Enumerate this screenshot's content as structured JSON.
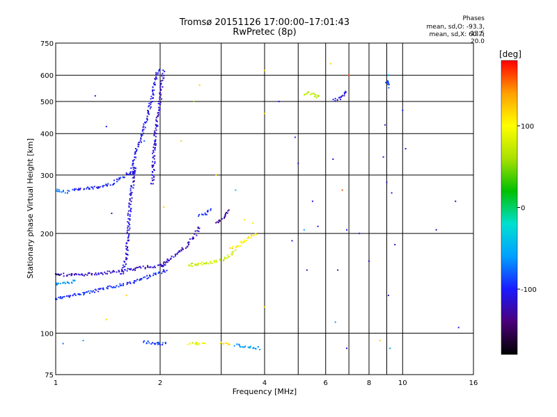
{
  "chart_data": {
    "type": "scatter",
    "title": "Tromsø 20151126 17:00:00–17:01:43",
    "subtitle": "RwPretec (8p)",
    "xlabel": "Frequency [MHz]",
    "ylabel": "Stationary phase Virtual Height [km]",
    "x_scale": "log",
    "y_scale": "log",
    "xlim": [
      1,
      16
    ],
    "ylim": [
      75,
      750
    ],
    "x_ticks": [
      1,
      2,
      4,
      6,
      8,
      10,
      16
    ],
    "x_minor_ticks": [
      3,
      5,
      7,
      9
    ],
    "y_ticks": [
      75,
      100,
      200,
      300,
      400,
      500,
      600,
      750
    ],
    "y_minor_ticks": [
      150
    ],
    "grid": true,
    "stats": {
      "title": "Phases",
      "o_line": "mean, sd,O: -93.3, 13.5",
      "x_line": "mean, sd,X:  60.7, 20.0"
    },
    "colorbar": {
      "label": "[deg]",
      "range": [
        -180,
        180
      ],
      "ticks": [
        100,
        0,
        -100
      ],
      "colormap": [
        "#000000",
        "#4b007a",
        "#1a1aff",
        "#00a0ff",
        "#00e0d0",
        "#00c000",
        "#aae000",
        "#ffff00",
        "#ffa000",
        "#ff0000"
      ]
    },
    "traces": [
      {
        "points": [
          [
            1.0,
            127
          ],
          [
            1.12,
            130
          ],
          [
            1.3,
            134
          ],
          [
            1.5,
            139
          ],
          [
            1.7,
            143
          ],
          [
            1.9,
            150
          ],
          [
            2.1,
            155
          ]
        ],
        "phase": -95
      },
      {
        "points": [
          [
            1.0,
            150
          ],
          [
            1.2,
            150
          ],
          [
            1.4,
            152
          ],
          [
            1.6,
            155
          ],
          [
            1.8,
            158
          ],
          [
            2.0,
            160
          ],
          [
            2.1,
            160
          ]
        ],
        "phase": -115
      },
      {
        "points": [
          [
            1.0,
            140
          ],
          [
            1.08,
            142
          ],
          [
            1.15,
            144
          ]
        ],
        "phase": -60
      },
      {
        "points": [
          [
            1.0,
            270
          ],
          [
            1.05,
            268
          ],
          [
            1.1,
            266
          ]
        ],
        "phase": -75
      },
      {
        "points": [
          [
            1.12,
            270
          ],
          [
            1.3,
            275
          ],
          [
            1.45,
            282
          ],
          [
            1.6,
            300
          ],
          [
            1.7,
            310
          ]
        ],
        "phase": -100
      },
      {
        "points": [
          [
            1.55,
            150
          ],
          [
            1.6,
            170
          ],
          [
            1.62,
            200
          ],
          [
            1.63,
            230
          ],
          [
            1.65,
            260
          ],
          [
            1.67,
            290
          ],
          [
            1.7,
            320
          ]
        ],
        "phase": -110
      },
      {
        "points": [
          [
            1.65,
            300
          ],
          [
            1.7,
            350
          ],
          [
            1.78,
            400
          ],
          [
            1.85,
            460
          ],
          [
            1.9,
            520
          ],
          [
            1.95,
            600
          ],
          [
            2.0,
            630
          ]
        ],
        "phase": -105
      },
      {
        "points": [
          [
            1.9,
            280
          ],
          [
            1.92,
            350
          ],
          [
            1.95,
            420
          ],
          [
            2.0,
            500
          ],
          [
            2.02,
            560
          ],
          [
            2.05,
            620
          ]
        ],
        "phase": -115
      },
      {
        "points": [
          [
            2.0,
            160
          ],
          [
            2.1,
            165
          ],
          [
            2.25,
            175
          ],
          [
            2.4,
            185
          ],
          [
            2.5,
            195
          ],
          [
            2.6,
            210
          ]
        ],
        "phase": -120
      },
      {
        "points": [
          [
            2.4,
            160
          ],
          [
            2.6,
            162
          ],
          [
            2.8,
            164
          ],
          [
            3.0,
            166
          ],
          [
            3.2,
            172
          ],
          [
            3.3,
            178
          ]
        ],
        "phase": 75
      },
      {
        "points": [
          [
            2.9,
            215
          ],
          [
            3.0,
            220
          ],
          [
            3.1,
            228
          ],
          [
            3.15,
            238
          ]
        ],
        "phase": -130
      },
      {
        "points": [
          [
            2.6,
            225
          ],
          [
            2.7,
            230
          ],
          [
            2.8,
            238
          ]
        ],
        "phase": -90
      },
      {
        "points": [
          [
            3.2,
            180
          ],
          [
            3.4,
            185
          ],
          [
            3.6,
            195
          ],
          [
            3.8,
            200
          ]
        ],
        "phase": 110
      },
      {
        "points": [
          [
            1.8,
            94
          ],
          [
            2.0,
            93
          ],
          [
            2.1,
            93
          ]
        ],
        "phase": -90
      },
      {
        "points": [
          [
            2.4,
            93
          ],
          [
            2.6,
            93
          ],
          [
            2.7,
            93
          ]
        ],
        "phase": 90
      },
      {
        "points": [
          [
            3.0,
            93
          ],
          [
            3.2,
            93
          ]
        ],
        "phase": 110
      },
      {
        "points": [
          [
            3.3,
            92
          ],
          [
            3.6,
            91
          ],
          [
            3.9,
            90
          ]
        ],
        "phase": -60
      },
      {
        "points": [
          [
            5.2,
            525
          ],
          [
            5.4,
            530
          ],
          [
            5.6,
            520
          ],
          [
            5.8,
            515
          ]
        ],
        "phase": 70
      },
      {
        "points": [
          [
            6.3,
            505
          ],
          [
            6.6,
            510
          ],
          [
            6.9,
            540
          ]
        ],
        "phase": -110
      },
      {
        "points": [
          [
            9.0,
            570
          ],
          [
            9.1,
            575
          ],
          [
            9.1,
            550
          ]
        ],
        "phase": -90
      }
    ],
    "points": [
      [
        1.05,
        93,
        -75
      ],
      [
        1.2,
        95,
        -60
      ],
      [
        1.4,
        110,
        120
      ],
      [
        1.6,
        130,
        120
      ],
      [
        1.3,
        520,
        -110
      ],
      [
        1.4,
        420,
        -100
      ],
      [
        1.45,
        230,
        -120
      ],
      [
        1.8,
        380,
        -80
      ],
      [
        2.05,
        240,
        120
      ],
      [
        2.3,
        380,
        120
      ],
      [
        2.5,
        500,
        50
      ],
      [
        2.6,
        560,
        120
      ],
      [
        2.9,
        300,
        110
      ],
      [
        3.3,
        270,
        -40
      ],
      [
        3.5,
        220,
        110
      ],
      [
        3.7,
        215,
        110
      ],
      [
        4.0,
        460,
        120
      ],
      [
        4.0,
        120,
        120
      ],
      [
        4.0,
        620,
        120
      ],
      [
        4.4,
        500,
        -110
      ],
      [
        4.8,
        190,
        -110
      ],
      [
        4.9,
        390,
        -100
      ],
      [
        5.0,
        325,
        -110
      ],
      [
        5.2,
        205,
        -60
      ],
      [
        5.3,
        155,
        -110
      ],
      [
        5.5,
        250,
        -110
      ],
      [
        5.7,
        210,
        -110
      ],
      [
        6.2,
        650,
        120
      ],
      [
        6.3,
        335,
        -110
      ],
      [
        6.4,
        108,
        -60
      ],
      [
        6.5,
        155,
        -120
      ],
      [
        6.7,
        270,
        160
      ],
      [
        6.9,
        205,
        -100
      ],
      [
        6.9,
        90,
        -110
      ],
      [
        7.0,
        600,
        160
      ],
      [
        7.5,
        200,
        -100
      ],
      [
        8.0,
        165,
        -110
      ],
      [
        8.6,
        95,
        120
      ],
      [
        8.8,
        340,
        -100
      ],
      [
        8.9,
        425,
        -120
      ],
      [
        9.0,
        285,
        -110
      ],
      [
        9.1,
        600,
        -60
      ],
      [
        9.1,
        130,
        -120
      ],
      [
        9.2,
        90,
        -60
      ],
      [
        9.3,
        265,
        -110
      ],
      [
        9.5,
        185,
        -110
      ],
      [
        10.0,
        470,
        -100
      ],
      [
        10.2,
        360,
        -110
      ],
      [
        12.5,
        205,
        -130
      ],
      [
        14.2,
        250,
        -130
      ],
      [
        14.5,
        104,
        -110
      ]
    ]
  }
}
